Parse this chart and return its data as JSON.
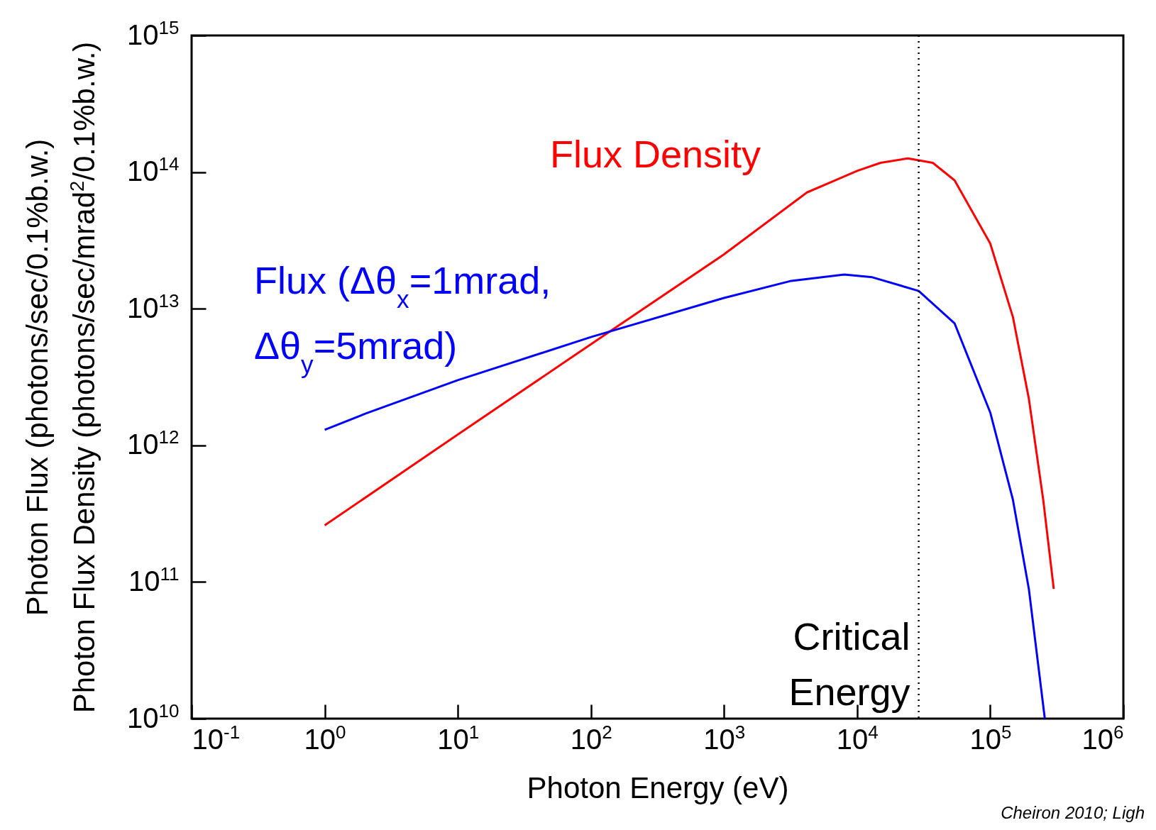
{
  "chart_data": {
    "type": "line",
    "log": "xy",
    "xlabel": "Photon Energy (eV)",
    "ylabel": "Photon Flux (photons/sec/0.1%b.w.)\nPhoton Flux Density (photons/sec/mrad$^{2}$/0.1%b.w.)",
    "xlim": [
      0.1,
      1000000
    ],
    "ylim": [
      10000000000,
      1000000000000000
    ],
    "xticks": [
      {
        "value": 0.1,
        "label": "10$^{-1}$"
      },
      {
        "value": 1,
        "label": "10$^{0}$"
      },
      {
        "value": 10,
        "label": "10$^{1}$"
      },
      {
        "value": 100,
        "label": "10$^{2}$"
      },
      {
        "value": 1000,
        "label": "10$^{3}$"
      },
      {
        "value": 10000,
        "label": "10$^{4}$"
      },
      {
        "value": 100000,
        "label": "10$^{5}$"
      },
      {
        "value": 1000000,
        "label": "10$^{6}$"
      }
    ],
    "yticks": [
      {
        "value": 10000000000,
        "label": "10$^{10}$"
      },
      {
        "value": 100000000000,
        "label": "10$^{11}$"
      },
      {
        "value": 1000000000000,
        "label": "10$^{12}$"
      },
      {
        "value": 10000000000000,
        "label": "10$^{13}$"
      },
      {
        "value": 100000000000000,
        "label": "10$^{14}$"
      },
      {
        "value": 1000000000000000,
        "label": "10$^{15}$"
      }
    ],
    "series": [
      {
        "name": "Flux Density",
        "color": "#ff0000",
        "x": [
          1,
          10,
          100,
          1000,
          4200,
          10000,
          15000,
          24000,
          37000,
          54000,
          100000,
          148000,
          195000,
          250000,
          300000
        ],
        "values": [
          260000000000,
          1200000000000,
          5500000000000,
          25000000000000,
          71000000000000,
          102000000000000,
          117000000000000,
          126000000000000,
          117000000000000,
          87000000000000,
          30000000000000,
          8700000000000,
          2200000000000,
          400000000000,
          89000000000
        ]
      },
      {
        "name": "Flux (Δθ$_{x}$=1mrad, Δθ$_{y}$=5mrad)",
        "color": "#0000ff",
        "x": [
          1,
          2,
          10,
          100,
          1000,
          3200,
          8000,
          13000,
          29000,
          54000,
          100000,
          148000,
          195000,
          257000
        ],
        "values": [
          1300000000000,
          1700000000000,
          3000000000000,
          6200000000000,
          12000000000000,
          16000000000000,
          17800000000000,
          17000000000000,
          13500000000000,
          7800000000000,
          1740000000000,
          400000000000,
          89000000000,
          10000000000
        ]
      }
    ],
    "ref_lines": [
      {
        "axis": "x",
        "value": 29000,
        "label": "Critical Energy",
        "color": "#000000",
        "line_style": "dotted"
      }
    ],
    "annotations": [
      "Cheiron 2010; Ligh"
    ]
  }
}
